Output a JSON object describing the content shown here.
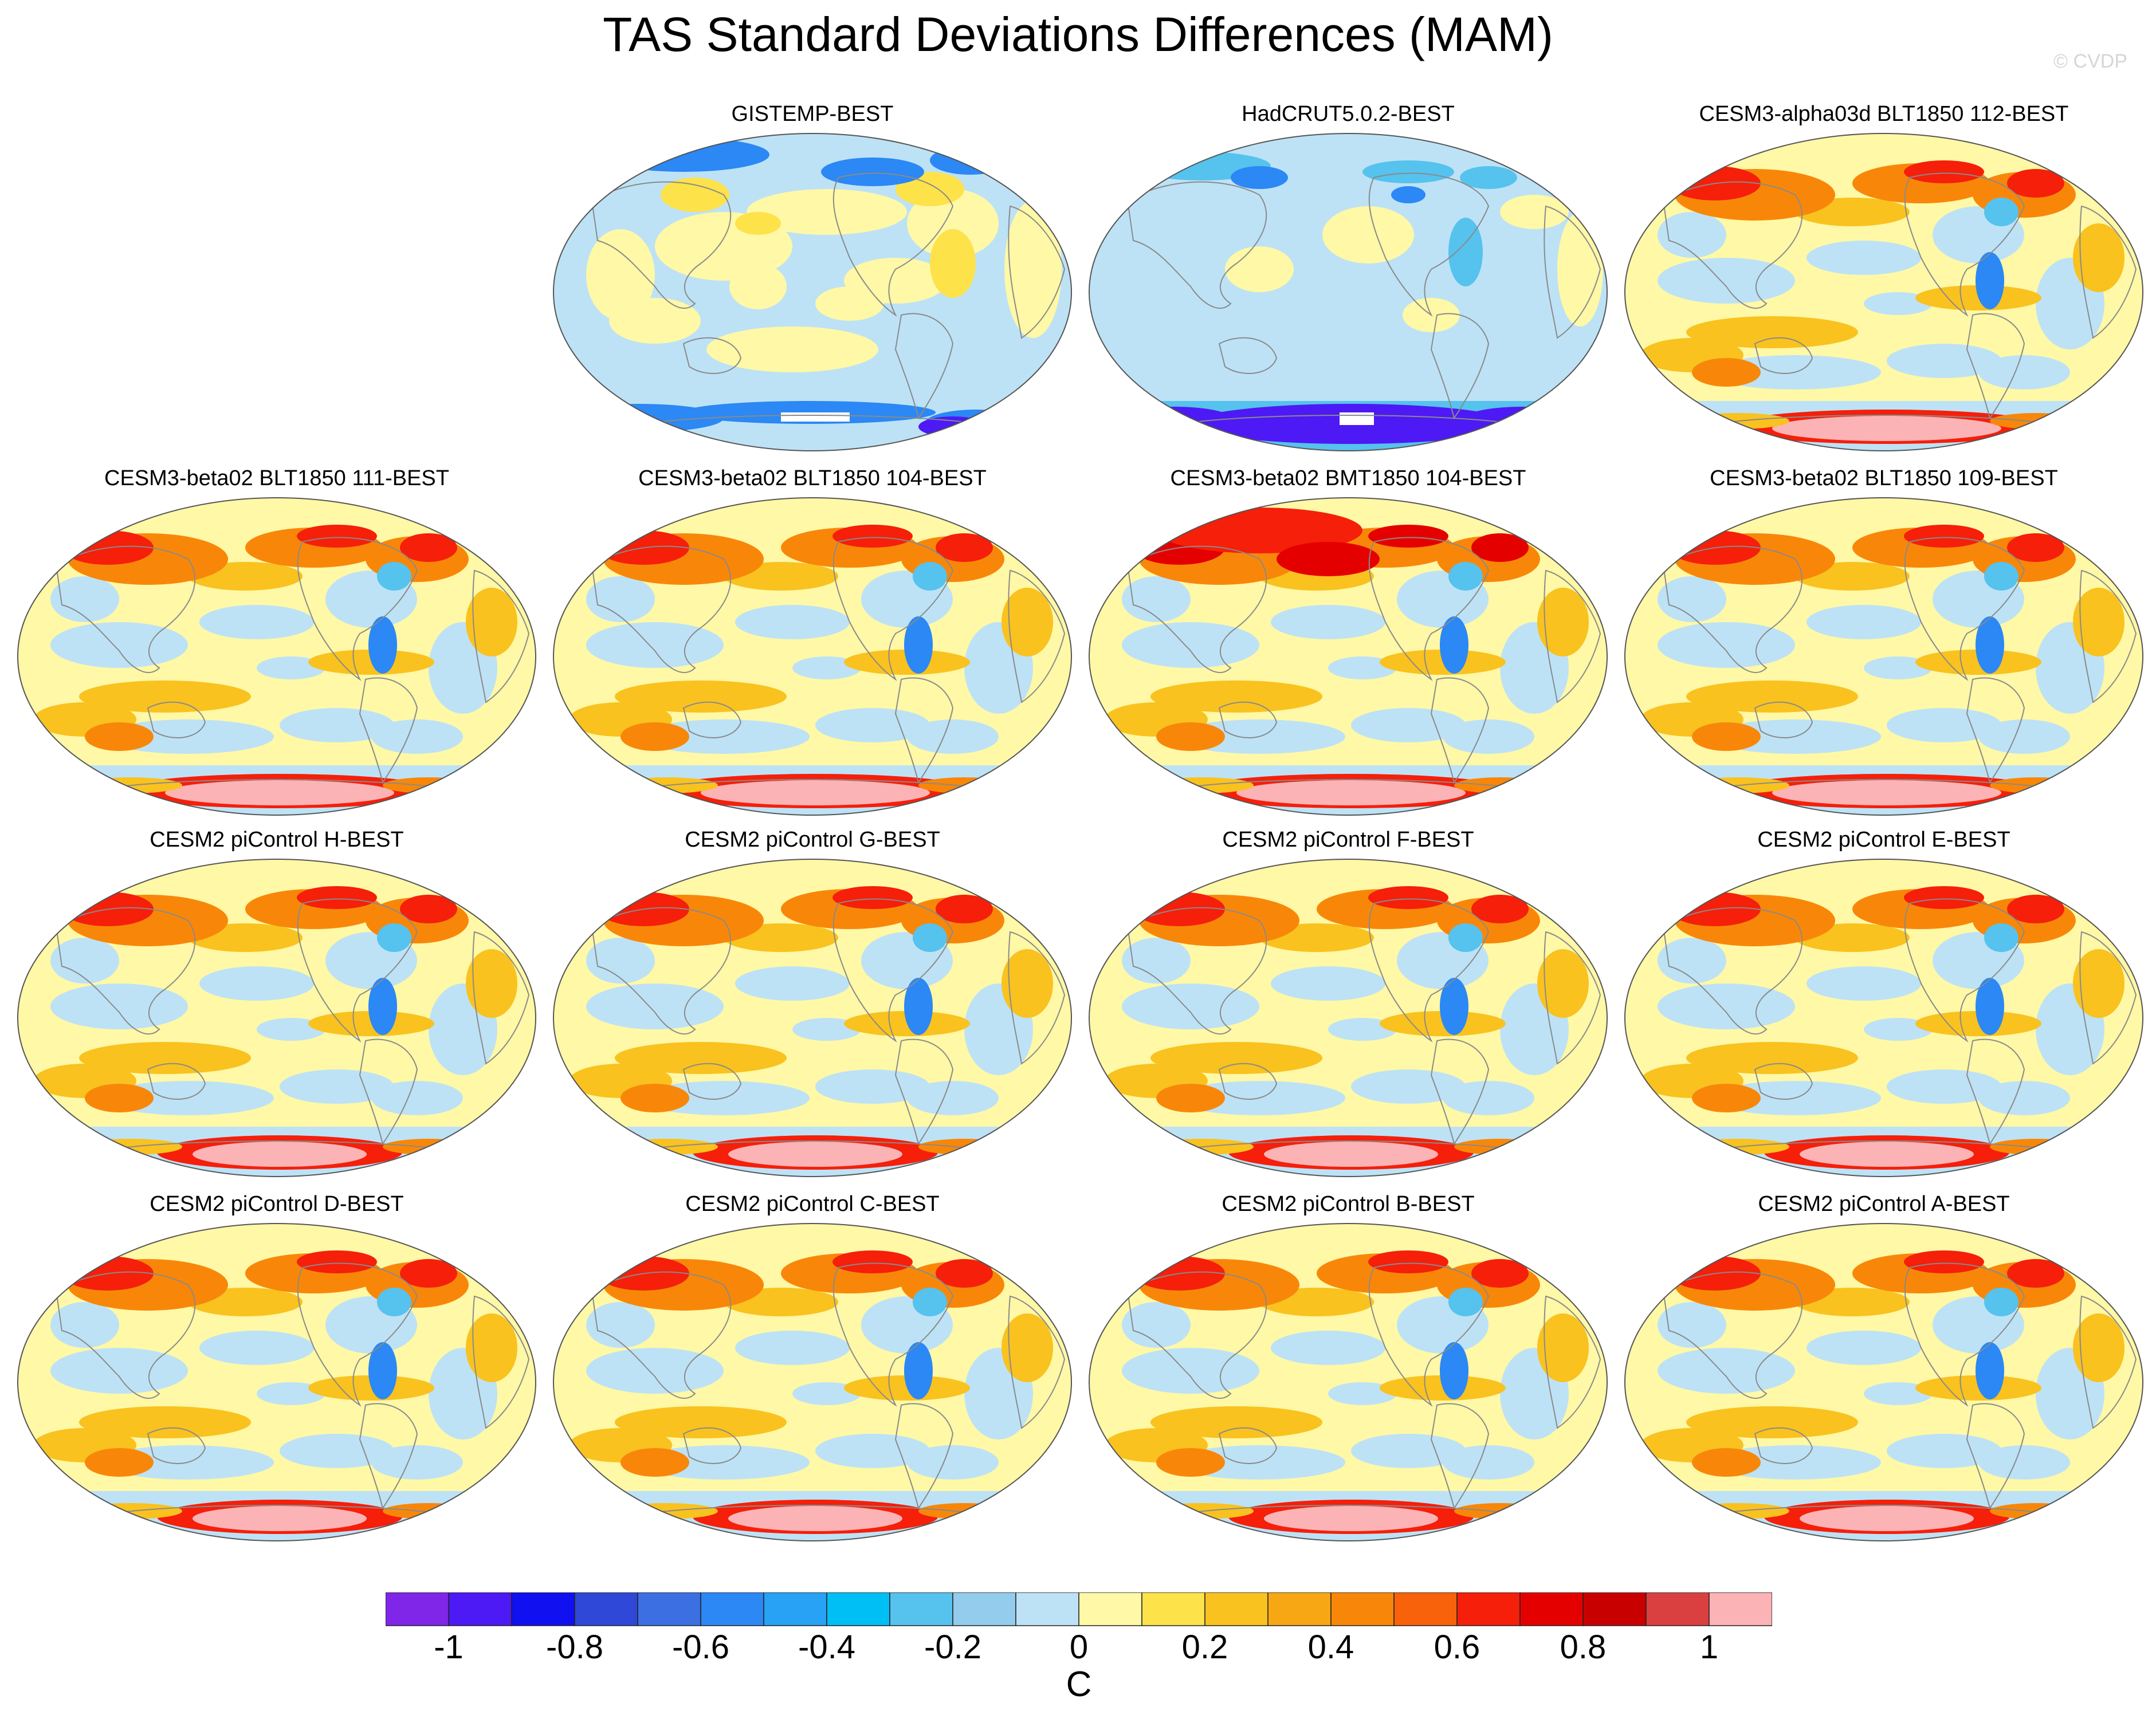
{
  "title": "TAS Standard Deviations Differences (MAM)",
  "watermark": "© CVDP",
  "panels": [
    {
      "title": "GISTEMP-BEST",
      "pattern": "obs_gis"
    },
    {
      "title": "HadCRUT5.0.2-BEST",
      "pattern": "obs_had"
    },
    {
      "title": "CESM3-alpha03d BLT1850 112-BEST",
      "pattern": "model_warm"
    },
    {
      "title": "CESM3-beta02 BLT1850 111-BEST",
      "pattern": "model_warm"
    },
    {
      "title": "CESM3-beta02 BLT1850 104-BEST",
      "pattern": "model_warm"
    },
    {
      "title": "CESM3-beta02 BMT1850 104-BEST",
      "pattern": "model_hot"
    },
    {
      "title": "CESM3-beta02 BLT1850 109-BEST",
      "pattern": "model_warm"
    },
    {
      "title": "CESM2 piControl H-BEST",
      "pattern": "model_mid"
    },
    {
      "title": "CESM2 piControl G-BEST",
      "pattern": "model_mid"
    },
    {
      "title": "CESM2 piControl F-BEST",
      "pattern": "model_mid"
    },
    {
      "title": "CESM2 piControl E-BEST",
      "pattern": "model_mid"
    },
    {
      "title": "CESM2 piControl D-BEST",
      "pattern": "model_mid"
    },
    {
      "title": "CESM2 piControl C-BEST",
      "pattern": "model_mid"
    },
    {
      "title": "CESM2 piControl B-BEST",
      "pattern": "model_mid"
    },
    {
      "title": "CESM2 piControl A-BEST",
      "pattern": "model_mid"
    }
  ],
  "colorbar": {
    "unit": "C",
    "colors": [
      "#7f26e8",
      "#4d19f5",
      "#1010f0",
      "#2f48d8",
      "#3b6fe2",
      "#2b88f4",
      "#27a2f4",
      "#00bff5",
      "#56c2ee",
      "#93ccec",
      "#bde2f6",
      "#fff8a6",
      "#fde24a",
      "#f9c21f",
      "#f7a714",
      "#f88709",
      "#f8620a",
      "#f51f0a",
      "#e50000",
      "#c90000",
      "#da4040",
      "#fbb3b6"
    ],
    "tick_labels": [
      "-1",
      "-0.8",
      "-0.6",
      "-0.4",
      "-0.2",
      "0",
      "0.2",
      "0.4",
      "0.6",
      "0.8",
      "1"
    ]
  }
}
